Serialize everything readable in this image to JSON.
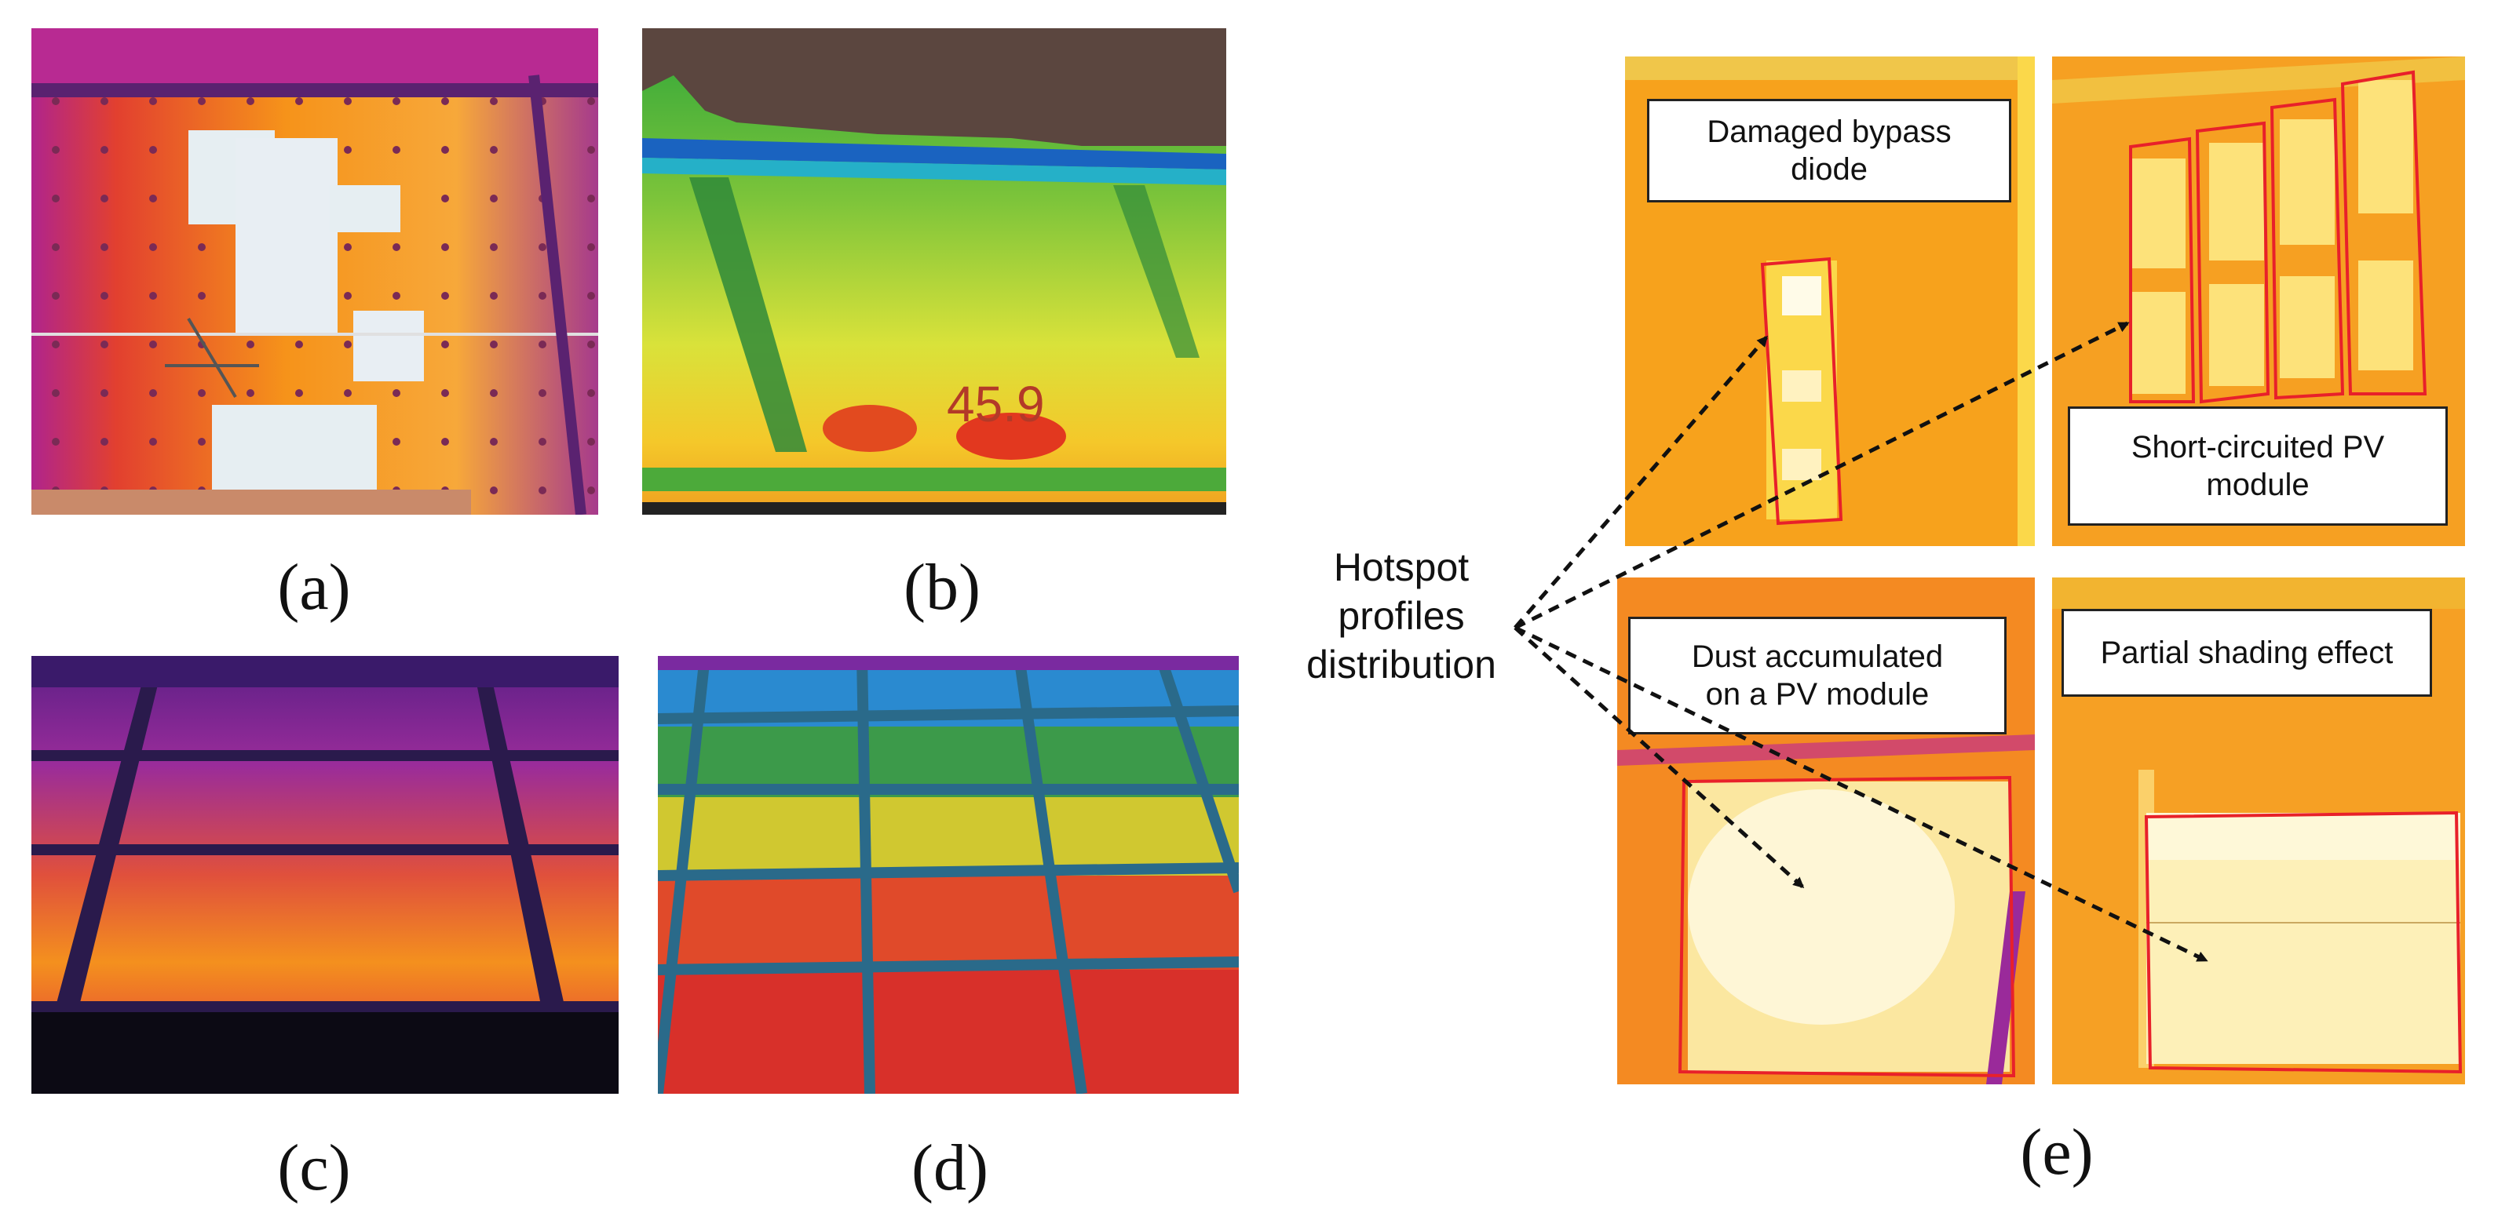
{
  "captions": {
    "a": "(a)",
    "b": "(b)",
    "c": "(c)",
    "d": "(d)",
    "e": "(e)"
  },
  "panel_b": {
    "temperature_reading": "45.9"
  },
  "panel_e": {
    "hotspot_label_line1": "Hotspot",
    "hotspot_label_line2": "profiles",
    "hotspot_label_line3": "distribution",
    "labels": {
      "damaged_bypass_diode": "Damaged bypass diode",
      "short_circuited_module": "Short-circuited PV module",
      "dust_accumulated": "Dust accumulated on a PV module",
      "partial_shading": "Partial shading effect"
    }
  },
  "colors": {
    "outline": "#e8202a",
    "arrow": "#111111",
    "thermal_orange": "#f7a21c",
    "thermal_yellow": "#fbd84a"
  }
}
